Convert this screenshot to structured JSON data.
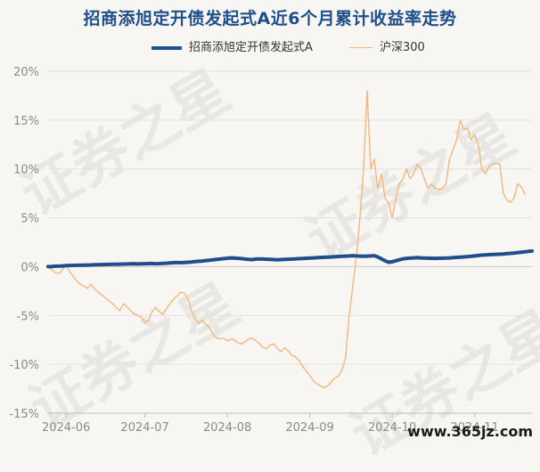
{
  "chart_data": {
    "type": "line",
    "title": "招商添旭定开债发起式A近6个月累计收益率走势",
    "ylim": [
      -15,
      20
    ],
    "yticks": [
      "20%",
      "15%",
      "10%",
      "5%",
      "0%",
      "-5%",
      "-10%",
      "-15%"
    ],
    "ytick_values": [
      20,
      15,
      10,
      5,
      0,
      -5,
      -10,
      -15
    ],
    "xticks": [
      "2024-06",
      "2024-07",
      "2024-08",
      "2024-09",
      "2024-10",
      "2024-11"
    ],
    "xtick_index": [
      5,
      27,
      50,
      73,
      96,
      119
    ],
    "grid": "horizontal",
    "legend_position": "top",
    "series": [
      {
        "name": "招商添旭定开债发起式A",
        "color": "#1f4e8c",
        "values": [
          0,
          0.02,
          0.05,
          0.06,
          0.08,
          0.1,
          0.12,
          0.13,
          0.14,
          0.15,
          0.16,
          0.17,
          0.18,
          0.19,
          0.2,
          0.21,
          0.22,
          0.23,
          0.24,
          0.25,
          0.26,
          0.27,
          0.28,
          0.29,
          0.3,
          0.28,
          0.29,
          0.3,
          0.31,
          0.32,
          0.3,
          0.31,
          0.33,
          0.35,
          0.38,
          0.4,
          0.42,
          0.4,
          0.43,
          0.45,
          0.48,
          0.52,
          0.55,
          0.58,
          0.62,
          0.66,
          0.7,
          0.74,
          0.78,
          0.82,
          0.86,
          0.9,
          0.88,
          0.85,
          0.82,
          0.78,
          0.75,
          0.72,
          0.78,
          0.8,
          0.78,
          0.76,
          0.74,
          0.72,
          0.7,
          0.72,
          0.74,
          0.76,
          0.78,
          0.8,
          0.82,
          0.84,
          0.86,
          0.88,
          0.9,
          0.92,
          0.94,
          0.96,
          0.98,
          1.0,
          1.02,
          1.04,
          1.06,
          1.08,
          1.1,
          1.12,
          1.1,
          1.08,
          1.06,
          1.08,
          1.1,
          1.12,
          1.0,
          0.8,
          0.6,
          0.45,
          0.5,
          0.6,
          0.7,
          0.8,
          0.85,
          0.88,
          0.9,
          0.92,
          0.9,
          0.88,
          0.87,
          0.86,
          0.85,
          0.86,
          0.87,
          0.88,
          0.9,
          0.92,
          0.95,
          0.98,
          1.0,
          1.03,
          1.06,
          1.1,
          1.14,
          1.18,
          1.2,
          1.22,
          1.24,
          1.26,
          1.28,
          1.3,
          1.33,
          1.36,
          1.4,
          1.44,
          1.48,
          1.52,
          1.56,
          1.6
        ]
      },
      {
        "name": "沪深300",
        "color": "#f2b77c",
        "values": [
          0,
          -0.3,
          -0.6,
          -0.7,
          -0.3,
          0.1,
          -0.5,
          -1.0,
          -1.5,
          -1.8,
          -2.0,
          -2.2,
          -1.8,
          -2.3,
          -2.6,
          -2.9,
          -3.2,
          -3.5,
          -3.8,
          -4.2,
          -4.5,
          -3.8,
          -4.1,
          -4.5,
          -4.8,
          -5.0,
          -5.2,
          -5.7,
          -5.5,
          -4.6,
          -4.2,
          -4.6,
          -4.9,
          -4.3,
          -3.8,
          -3.3,
          -3.0,
          -2.6,
          -2.7,
          -3.3,
          -4.5,
          -5.3,
          -5.8,
          -5.5,
          -5.9,
          -6.2,
          -6.9,
          -7.3,
          -7.4,
          -7.3,
          -7.6,
          -7.4,
          -7.5,
          -7.8,
          -7.9,
          -7.7,
          -7.4,
          -7.3,
          -7.6,
          -7.9,
          -8.3,
          -8.4,
          -8.0,
          -7.9,
          -8.4,
          -8.7,
          -8.3,
          -8.6,
          -9.1,
          -9.2,
          -9.6,
          -10.2,
          -10.7,
          -11.1,
          -11.7,
          -12.0,
          -12.2,
          -12.4,
          -12.2,
          -11.8,
          -11.4,
          -11.2,
          -10.6,
          -9.3,
          -5.0,
          -2.0,
          1.0,
          5.0,
          10.0,
          18.0,
          10.0,
          11.0,
          8.0,
          9.5,
          7.0,
          6.5,
          5.0,
          7.0,
          8.5,
          9.0,
          10.0,
          9.0,
          9.5,
          10.5,
          10.0,
          9.0,
          8.0,
          8.5,
          8.0,
          7.9,
          8.0,
          8.5,
          11.0,
          12.0,
          13.0,
          15.0,
          14.0,
          14.2,
          13.0,
          13.5,
          12.5,
          10.0,
          9.5,
          10.2,
          10.5,
          10.6,
          10.5,
          7.5,
          6.8,
          6.6,
          7.0,
          8.5,
          8.2,
          7.4
        ]
      }
    ]
  },
  "watermark": "证券之星",
  "corner_text": "www.365jz.com"
}
